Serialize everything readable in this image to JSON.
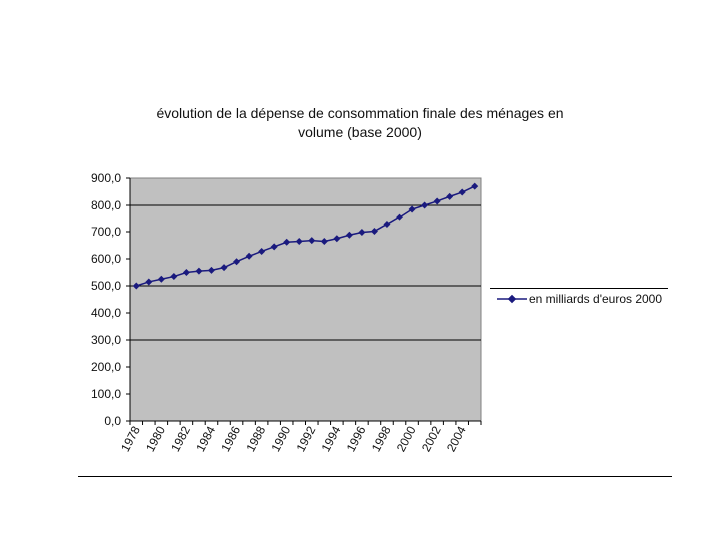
{
  "chart_data": {
    "type": "line",
    "title_line1": "évolution de la dépense de consommation finale des ménages en",
    "title_line2": "volume (base 2000)",
    "xlabel": "",
    "ylabel": "",
    "ylim": [
      0,
      900
    ],
    "y_ticks": [
      "900,0",
      "800,0",
      "700,0",
      "600,0",
      "500,0",
      "400,0",
      "300,0",
      "200,0",
      "100,0",
      "0,0"
    ],
    "y_tick_values": [
      900,
      800,
      700,
      600,
      500,
      400,
      300,
      200,
      100,
      0
    ],
    "x_tick_labels": [
      "1978",
      "1980",
      "1982",
      "1984",
      "1986",
      "1988",
      "1990",
      "1992",
      "1994",
      "1996",
      "1998",
      "2000",
      "2002",
      "2004"
    ],
    "x": [
      1978,
      1979,
      1980,
      1981,
      1982,
      1983,
      1984,
      1985,
      1986,
      1987,
      1988,
      1989,
      1990,
      1991,
      1992,
      1993,
      1994,
      1995,
      1996,
      1997,
      1998,
      1999,
      2000,
      2001,
      2002,
      2003,
      2004,
      2005
    ],
    "series": [
      {
        "name": "en milliards d'euros 2000",
        "values": [
          500,
          515,
          525,
          535,
          550,
          555,
          558,
          568,
          590,
          610,
          628,
          645,
          662,
          665,
          668,
          665,
          675,
          688,
          698,
          702,
          728,
          755,
          785,
          800,
          815,
          832,
          848,
          870
        ]
      }
    ],
    "grid": "horizontal gridlines at 500 and 800",
    "legend_position": "right",
    "colors": {
      "plot_background": "#c0c0c0",
      "series": "#1a1a7e"
    }
  }
}
